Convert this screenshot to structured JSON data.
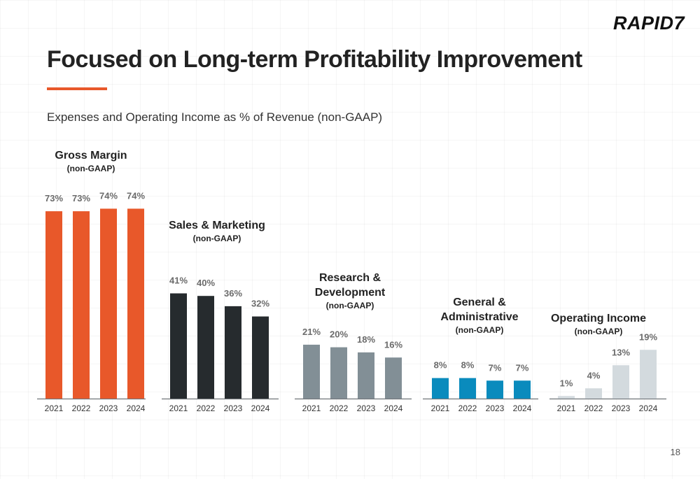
{
  "header": {
    "logo": "RAPID7",
    "title": "Focused on Long-term Profitability Improvement",
    "subtitle": "Expenses and Operating Income as % of Revenue (non-GAAP)",
    "page_number": "18"
  },
  "colors": {
    "accent": "#e8582a",
    "gross_margin": "#e8582a",
    "sales_marketing": "#262b2e",
    "research_development": "#828f96",
    "general_administrative": "#0a8bbd",
    "operating_income": "#d3dade"
  },
  "chart_data": [
    {
      "type": "bar",
      "title": "Gross Margin",
      "subtitle": "(non-GAAP)",
      "categories": [
        "2021",
        "2022",
        "2023",
        "2024"
      ],
      "values": [
        73,
        73,
        74,
        74
      ],
      "value_labels": [
        "73%",
        "73%",
        "74%",
        "74%"
      ]
    },
    {
      "type": "bar",
      "title": "Sales & Marketing",
      "subtitle": "(non-GAAP)",
      "categories": [
        "2021",
        "2022",
        "2023",
        "2024"
      ],
      "values": [
        41,
        40,
        36,
        32
      ],
      "value_labels": [
        "41%",
        "40%",
        "36%",
        "32%"
      ]
    },
    {
      "type": "bar",
      "title": "Research & Development",
      "subtitle": "(non-GAAP)",
      "categories": [
        "2021",
        "2022",
        "2023",
        "2024"
      ],
      "values": [
        21,
        20,
        18,
        16
      ],
      "value_labels": [
        "21%",
        "20%",
        "18%",
        "16%"
      ]
    },
    {
      "type": "bar",
      "title": "General & Administrative",
      "subtitle": "(non-GAAP)",
      "categories": [
        "2021",
        "2022",
        "2023",
        "2024"
      ],
      "values": [
        8,
        8,
        7,
        7
      ],
      "value_labels": [
        "8%",
        "8%",
        "7%",
        "7%"
      ]
    },
    {
      "type": "bar",
      "title": "Operating Income",
      "subtitle": "(non-GAAP)",
      "categories": [
        "2021",
        "2022",
        "2023",
        "2024"
      ],
      "values": [
        1,
        4,
        13,
        19
      ],
      "value_labels": [
        "1%",
        "4%",
        "13%",
        "19%"
      ]
    }
  ]
}
